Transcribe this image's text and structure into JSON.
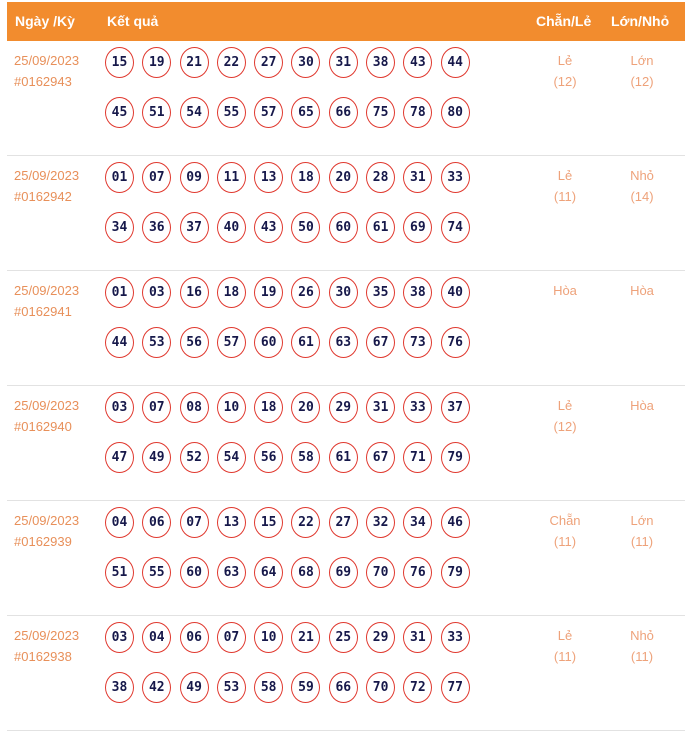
{
  "header": {
    "date": "Ngày /Kỳ",
    "result": "Kết quả",
    "even_odd": "Chẵn/Lẻ",
    "big_small": "Lớn/Nhỏ"
  },
  "colors": {
    "header_bg": "#f28c2e",
    "ball_border": "#e0392f",
    "ball_text": "#16184a",
    "accent_text": "#e8905a"
  },
  "draws": [
    {
      "date": "25/09/2023",
      "id": "#0162943",
      "numbers": [
        "15",
        "19",
        "21",
        "22",
        "27",
        "30",
        "31",
        "38",
        "43",
        "44",
        "45",
        "51",
        "54",
        "55",
        "57",
        "65",
        "66",
        "75",
        "78",
        "80"
      ],
      "even_odd": "Lẻ",
      "even_odd_count": "(12)",
      "big_small": "Lớn",
      "big_small_count": "(12)"
    },
    {
      "date": "25/09/2023",
      "id": "#0162942",
      "numbers": [
        "01",
        "07",
        "09",
        "11",
        "13",
        "18",
        "20",
        "28",
        "31",
        "33",
        "34",
        "36",
        "37",
        "40",
        "43",
        "50",
        "60",
        "61",
        "69",
        "74"
      ],
      "even_odd": "Lẻ",
      "even_odd_count": "(11)",
      "big_small": "Nhỏ",
      "big_small_count": "(14)"
    },
    {
      "date": "25/09/2023",
      "id": "#0162941",
      "numbers": [
        "01",
        "03",
        "16",
        "18",
        "19",
        "26",
        "30",
        "35",
        "38",
        "40",
        "44",
        "53",
        "56",
        "57",
        "60",
        "61",
        "63",
        "67",
        "73",
        "76"
      ],
      "even_odd": "Hòa",
      "even_odd_count": "",
      "big_small": "Hòa",
      "big_small_count": ""
    },
    {
      "date": "25/09/2023",
      "id": "#0162940",
      "numbers": [
        "03",
        "07",
        "08",
        "10",
        "18",
        "20",
        "29",
        "31",
        "33",
        "37",
        "47",
        "49",
        "52",
        "54",
        "56",
        "58",
        "61",
        "67",
        "71",
        "79"
      ],
      "even_odd": "Lẻ",
      "even_odd_count": "(12)",
      "big_small": "Hòa",
      "big_small_count": ""
    },
    {
      "date": "25/09/2023",
      "id": "#0162939",
      "numbers": [
        "04",
        "06",
        "07",
        "13",
        "15",
        "22",
        "27",
        "32",
        "34",
        "46",
        "51",
        "55",
        "60",
        "63",
        "64",
        "68",
        "69",
        "70",
        "76",
        "79"
      ],
      "even_odd": "Chẵn",
      "even_odd_count": "(11)",
      "big_small": "Lớn",
      "big_small_count": "(11)"
    },
    {
      "date": "25/09/2023",
      "id": "#0162938",
      "numbers": [
        "03",
        "04",
        "06",
        "07",
        "10",
        "21",
        "25",
        "29",
        "31",
        "33",
        "38",
        "42",
        "49",
        "53",
        "58",
        "59",
        "66",
        "70",
        "72",
        "77"
      ],
      "even_odd": "Lẻ",
      "even_odd_count": "(11)",
      "big_small": "Nhỏ",
      "big_small_count": "(11)"
    }
  ]
}
